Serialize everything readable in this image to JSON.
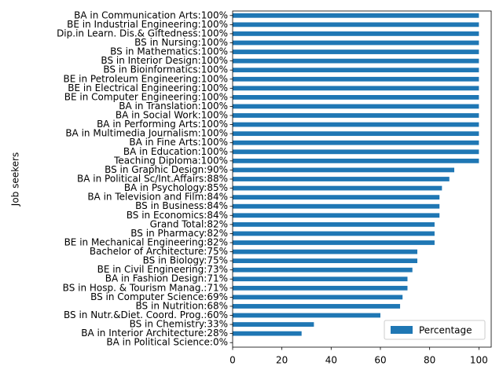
{
  "chart_data": {
    "type": "barh",
    "ylabel": "Job seekers",
    "categories": [
      "BA in Communication Arts:100%",
      "BE in Industrial Engineering:100%",
      "Dip.in Learn. Dis.& Giftedness:100%",
      "BS in Nursing:100%",
      "BS in Mathematics:100%",
      "BS in Interior Design:100%",
      "BS in Bioinformatics:100%",
      "BE in Petroleum Engineering:100%",
      "BE in Electrical Engineering:100%",
      "BE in Computer Engineering:100%",
      "BA in Translation:100%",
      "BA in Social Work:100%",
      "BA in Performing Arts:100%",
      "BA in Multimedia Journalism:100%",
      "BA in Fine Arts:100%",
      "BA in Education:100%",
      "Teaching Diploma:100%",
      "BS in Graphic Design:90%",
      "BA in Political Sc/Int.Affairs:88%",
      "BA in Psychology:85%",
      "BA in Television and Film:84%",
      "BS in Business:84%",
      "BS in Economics:84%",
      "Grand Total:82%",
      "BS in Pharmacy:82%",
      "BE in Mechanical Engineering:82%",
      "Bachelor of Architecture:75%",
      "BS in Biology:75%",
      "BE in Civil Engineering:73%",
      "BA in Fashion Design:71%",
      "BS in Hosp. & Tourism Manag.:71%",
      "BS in Computer Science:69%",
      "BS in Nutrition:68%",
      "BS in Nutr.&Diet. Coord. Prog.:60%",
      "BS in Chemistry:33%",
      "BA in Interior Architecture:28%",
      "BA in Political Science:0%"
    ],
    "series": [
      {
        "name": "Percentage",
        "color": "#1f77b4",
        "values": [
          100,
          100,
          100,
          100,
          100,
          100,
          100,
          100,
          100,
          100,
          100,
          100,
          100,
          100,
          100,
          100,
          100,
          90,
          88,
          85,
          84,
          84,
          84,
          82,
          82,
          82,
          75,
          75,
          73,
          71,
          71,
          69,
          68,
          60,
          33,
          28,
          0
        ]
      }
    ],
    "xlim": [
      0,
      105
    ],
    "xticks": [
      0,
      20,
      40,
      60,
      80,
      100
    ],
    "legend": "lower right"
  }
}
